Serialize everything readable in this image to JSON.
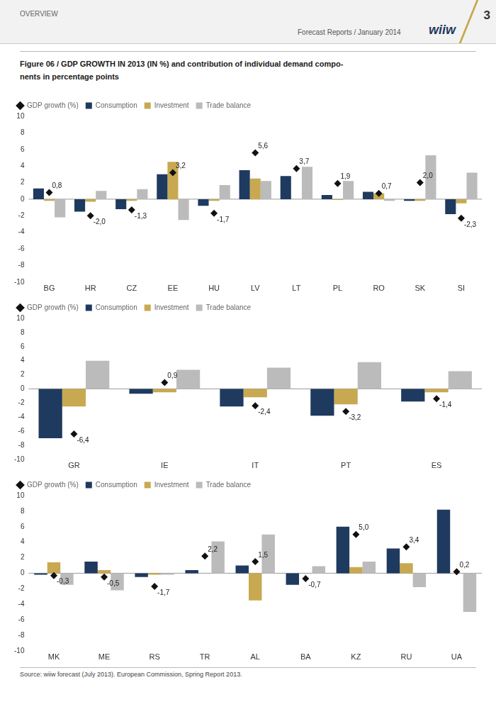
{
  "header": {
    "left": "OVERVIEW",
    "right": "Forecast Reports / January 2014",
    "logo": "wiiw",
    "page": "3"
  },
  "title": [
    "Figure 06 / GDP GROWTH IN 2013 (IN %) and contribution of individual demand compo-",
    "nents in percentage points"
  ],
  "footer": "Source: wiiw forecast (July 2013). European Commission, Spring Report 2013.",
  "chart_data": [
    {
      "type": "bar",
      "categories": [
        "BG",
        "HR",
        "CZ",
        "EE",
        "HU",
        "LV",
        "LT",
        "PL",
        "RO",
        "SK",
        "SI"
      ],
      "series": [
        {
          "name": "Consumption",
          "type": "bar",
          "color": "#1F3A5F",
          "values": [
            1.3,
            -1.5,
            -1.2,
            3.0,
            -0.8,
            3.5,
            2.8,
            0.5,
            0.9,
            -0.2,
            -1.8
          ]
        },
        {
          "name": "Investment",
          "type": "bar",
          "color": "#C8A951",
          "values": [
            -0.2,
            -0.3,
            -0.2,
            4.5,
            -0.2,
            2.5,
            0.0,
            -0.1,
            0.7,
            -0.2,
            -0.5
          ]
        },
        {
          "name": "Trade balance",
          "type": "bar",
          "color": "#BBBBBB",
          "values": [
            -2.2,
            1.0,
            1.2,
            -2.5,
            1.7,
            2.2,
            3.9,
            2.2,
            -0.2,
            5.3,
            3.2
          ]
        },
        {
          "name": "GDP growth (%)",
          "type": "line",
          "color": "#111111",
          "marker": "diamond",
          "line_style": "none",
          "data_labels": true,
          "values": [
            0.8,
            -2.0,
            -1.3,
            3.2,
            -1.7,
            5.6,
            3.7,
            1.9,
            0.7,
            2.0,
            -2.3
          ],
          "value_labels": [
            "0,8",
            "-2,0",
            "-1,3",
            "3,2",
            "-1,7",
            "5,6",
            "3,7",
            "1,9",
            "0,7",
            "2,0",
            "-2,3"
          ]
        }
      ],
      "ylim": [
        -10,
        10
      ],
      "yticks": [
        -10,
        -8,
        -6,
        -4,
        -2,
        0,
        2,
        4,
        6,
        8,
        10
      ],
      "grid": false,
      "legend": "upper left"
    },
    {
      "type": "bar",
      "categories": [
        "GR",
        "IE",
        "IT",
        "PT",
        "ES"
      ],
      "series": [
        {
          "name": "Consumption",
          "type": "bar",
          "color": "#1F3A5F",
          "values": [
            -7.0,
            -0.7,
            -2.5,
            -3.8,
            -1.8
          ]
        },
        {
          "name": "Investment",
          "type": "bar",
          "color": "#C8A951",
          "values": [
            -2.5,
            -0.5,
            -1.2,
            -2.2,
            -0.5
          ]
        },
        {
          "name": "Trade balance",
          "type": "bar",
          "color": "#BBBBBB",
          "values": [
            4.0,
            2.7,
            3.0,
            3.8,
            2.5
          ]
        },
        {
          "name": "GDP growth (%)",
          "type": "line",
          "color": "#111111",
          "marker": "diamond",
          "line_style": "none",
          "data_labels": true,
          "values": [
            -6.4,
            0.9,
            -2.4,
            -3.2,
            -1.4
          ],
          "value_labels": [
            "-6,4",
            "0,9",
            "-2,4",
            "-3,2",
            "-1,4"
          ]
        }
      ],
      "ylim": [
        -10,
        10
      ],
      "yticks": [
        -10,
        -8,
        -6,
        -4,
        -2,
        0,
        2,
        4,
        6,
        8,
        10
      ],
      "grid": false,
      "legend": "upper left"
    },
    {
      "type": "bar",
      "categories": [
        "MK",
        "ME",
        "RS",
        "TR",
        "AL",
        "BA",
        "KZ",
        "RU",
        "UA"
      ],
      "series": [
        {
          "name": "Consumption",
          "type": "bar",
          "color": "#1F3A5F",
          "values": [
            -0.2,
            1.5,
            -0.5,
            0.4,
            1.0,
            -1.5,
            6.0,
            3.2,
            8.2
          ]
        },
        {
          "name": "Investment",
          "type": "bar",
          "color": "#C8A951",
          "values": [
            1.4,
            0.4,
            -0.2,
            0.0,
            -3.5,
            0.0,
            0.8,
            1.3,
            0.0
          ]
        },
        {
          "name": "Trade balance",
          "type": "bar",
          "color": "#BBBBBB",
          "values": [
            -1.5,
            -2.2,
            -0.2,
            4.1,
            5.0,
            0.9,
            1.5,
            -1.8,
            -5.0
          ]
        },
        {
          "name": "GDP growth (%)",
          "type": "line",
          "color": "#111111",
          "marker": "diamond",
          "line_style": "none",
          "data_labels": true,
          "values": [
            -0.3,
            -0.5,
            -1.7,
            2.2,
            1.5,
            -0.7,
            5.0,
            3.4,
            0.2
          ],
          "value_labels": [
            "-0,3",
            "-0,5",
            "-1,7",
            "2,2",
            "1,5",
            "-0,7",
            "5,0",
            "3,4",
            "0,2"
          ]
        }
      ],
      "ylim": [
        -10,
        10
      ],
      "yticks": [
        -10,
        -8,
        -6,
        -4,
        -2,
        0,
        2,
        4,
        6,
        8,
        10
      ],
      "grid": false,
      "legend": "upper left"
    }
  ]
}
